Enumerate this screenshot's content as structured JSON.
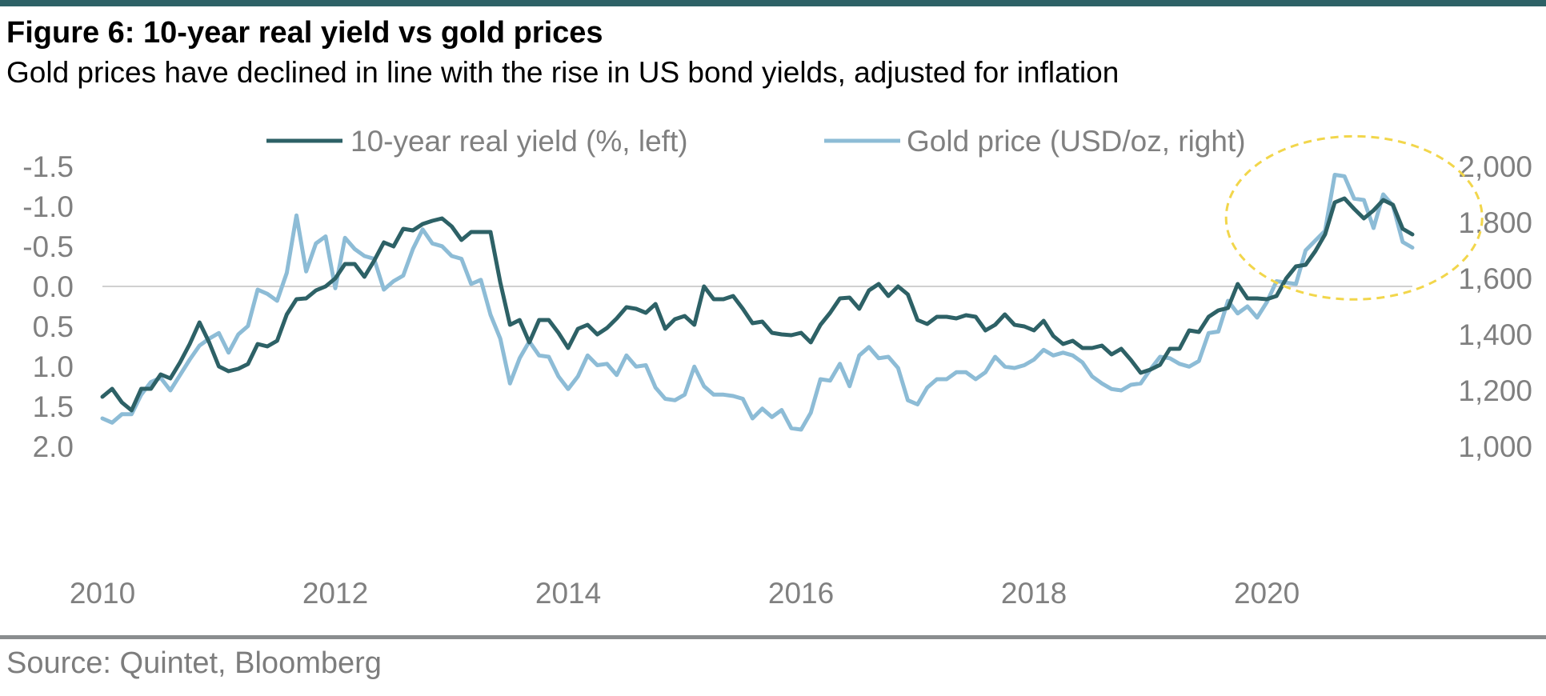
{
  "figure": {
    "title": "Figure 6: 10-year real yield vs gold prices",
    "subtitle": "Gold prices have declined in line with the rise in US bond yields, adjusted for inflation",
    "source": "Source: Quintet, Bloomberg"
  },
  "colors": {
    "real_yield": "#2d6166",
    "gold": "#8dbcd6",
    "zero_line": "#d0d0d0",
    "highlight_circle": "#f2d64b",
    "rule_top": "#2d6166",
    "rule_bottom": "#8a8d8f"
  },
  "chart_data": {
    "type": "line",
    "title": "",
    "xlabel": "",
    "legend_position": "top",
    "grid": false,
    "x_ticks": [
      "2010",
      "2012",
      "2014",
      "2016",
      "2018",
      "2020"
    ],
    "x_range": [
      "2010-01",
      "2021-03"
    ],
    "left_axis": {
      "ticks": [
        "-1.5",
        "-1.0",
        "-0.5",
        "0.0",
        "0.5",
        "1.0",
        "1.5",
        "2.0"
      ],
      "ylim": [
        -1.5,
        2.0
      ],
      "inverted": true
    },
    "right_axis": {
      "ticks": [
        "2,000",
        "1,800",
        "1,600",
        "1,400",
        "1,200",
        "1,000"
      ],
      "ylim": [
        1000,
        2000
      ]
    },
    "annotation": "dashed ellipse highlighting mid-2020 to early-2021 peak",
    "series": [
      {
        "name": "10-year real yield (%, left)",
        "axis": "left",
        "color": "#2d6166",
        "points": [
          [
            "2010-01",
            1.38
          ],
          [
            "2010-02",
            1.28
          ],
          [
            "2010-03",
            1.45
          ],
          [
            "2010-04",
            1.55
          ],
          [
            "2010-05",
            1.28
          ],
          [
            "2010-06",
            1.28
          ],
          [
            "2010-07",
            1.1
          ],
          [
            "2010-08",
            1.15
          ],
          [
            "2010-09",
            0.95
          ],
          [
            "2010-10",
            0.72
          ],
          [
            "2010-11",
            0.45
          ],
          [
            "2010-12",
            0.7
          ],
          [
            "2011-01",
            1.0
          ],
          [
            "2011-02",
            1.06
          ],
          [
            "2011-03",
            1.03
          ],
          [
            "2011-04",
            0.97
          ],
          [
            "2011-05",
            0.72
          ],
          [
            "2011-06",
            0.75
          ],
          [
            "2011-07",
            0.68
          ],
          [
            "2011-08",
            0.35
          ],
          [
            "2011-09",
            0.16
          ],
          [
            "2011-10",
            0.15
          ],
          [
            "2011-11",
            0.05
          ],
          [
            "2011-12",
            0.0
          ],
          [
            "2012-01",
            -0.1
          ],
          [
            "2012-02",
            -0.28
          ],
          [
            "2012-03",
            -0.28
          ],
          [
            "2012-04",
            -0.12
          ],
          [
            "2012-05",
            -0.32
          ],
          [
            "2012-06",
            -0.55
          ],
          [
            "2012-07",
            -0.5
          ],
          [
            "2012-08",
            -0.72
          ],
          [
            "2012-09",
            -0.7
          ],
          [
            "2012-10",
            -0.78
          ],
          [
            "2012-11",
            -0.82
          ],
          [
            "2012-12",
            -0.85
          ],
          [
            "2013-01",
            -0.75
          ],
          [
            "2013-02",
            -0.58
          ],
          [
            "2013-03",
            -0.68
          ],
          [
            "2013-04",
            -0.68
          ],
          [
            "2013-05",
            -0.68
          ],
          [
            "2013-06",
            -0.05
          ],
          [
            "2013-07",
            0.48
          ],
          [
            "2013-08",
            0.42
          ],
          [
            "2013-09",
            0.7
          ],
          [
            "2013-10",
            0.42
          ],
          [
            "2013-11",
            0.42
          ],
          [
            "2013-12",
            0.58
          ],
          [
            "2014-01",
            0.77
          ],
          [
            "2014-02",
            0.53
          ],
          [
            "2014-03",
            0.48
          ],
          [
            "2014-04",
            0.6
          ],
          [
            "2014-05",
            0.52
          ],
          [
            "2014-06",
            0.4
          ],
          [
            "2014-07",
            0.26
          ],
          [
            "2014-08",
            0.28
          ],
          [
            "2014-09",
            0.33
          ],
          [
            "2014-10",
            0.22
          ],
          [
            "2014-11",
            0.53
          ],
          [
            "2014-12",
            0.41
          ],
          [
            "2015-01",
            0.37
          ],
          [
            "2015-02",
            0.48
          ],
          [
            "2015-03",
            0.0
          ],
          [
            "2015-04",
            0.16
          ],
          [
            "2015-05",
            0.16
          ],
          [
            "2015-06",
            0.12
          ],
          [
            "2015-07",
            0.28
          ],
          [
            "2015-08",
            0.46
          ],
          [
            "2015-09",
            0.44
          ],
          [
            "2015-10",
            0.58
          ],
          [
            "2015-11",
            0.6
          ],
          [
            "2015-12",
            0.61
          ],
          [
            "2016-01",
            0.58
          ],
          [
            "2016-02",
            0.7
          ],
          [
            "2016-03",
            0.48
          ],
          [
            "2016-04",
            0.33
          ],
          [
            "2016-05",
            0.15
          ],
          [
            "2016-06",
            0.14
          ],
          [
            "2016-07",
            0.28
          ],
          [
            "2016-08",
            0.05
          ],
          [
            "2016-09",
            -0.03
          ],
          [
            "2016-10",
            0.12
          ],
          [
            "2016-11",
            0.0
          ],
          [
            "2016-12",
            0.1
          ],
          [
            "2017-01",
            0.42
          ],
          [
            "2017-02",
            0.47
          ],
          [
            "2017-03",
            0.38
          ],
          [
            "2017-04",
            0.38
          ],
          [
            "2017-05",
            0.4
          ],
          [
            "2017-06",
            0.36
          ],
          [
            "2017-07",
            0.38
          ],
          [
            "2017-08",
            0.55
          ],
          [
            "2017-09",
            0.48
          ],
          [
            "2017-10",
            0.35
          ],
          [
            "2017-11",
            0.48
          ],
          [
            "2017-12",
            0.5
          ],
          [
            "2018-01",
            0.55
          ],
          [
            "2018-02",
            0.43
          ],
          [
            "2018-03",
            0.62
          ],
          [
            "2018-04",
            0.72
          ],
          [
            "2018-05",
            0.68
          ],
          [
            "2018-06",
            0.77
          ],
          [
            "2018-07",
            0.77
          ],
          [
            "2018-08",
            0.74
          ],
          [
            "2018-09",
            0.85
          ],
          [
            "2018-10",
            0.78
          ],
          [
            "2018-11",
            0.92
          ],
          [
            "2018-12",
            1.08
          ],
          [
            "2019-01",
            1.04
          ],
          [
            "2019-02",
            0.98
          ],
          [
            "2019-03",
            0.78
          ],
          [
            "2019-04",
            0.78
          ],
          [
            "2019-05",
            0.55
          ],
          [
            "2019-06",
            0.57
          ],
          [
            "2019-07",
            0.38
          ],
          [
            "2019-08",
            0.3
          ],
          [
            "2019-09",
            0.27
          ],
          [
            "2019-10",
            -0.03
          ],
          [
            "2019-11",
            0.15
          ],
          [
            "2019-12",
            0.15
          ],
          [
            "2020-01",
            0.16
          ],
          [
            "2020-02",
            0.12
          ],
          [
            "2020-03",
            -0.1
          ],
          [
            "2020-04",
            -0.25
          ],
          [
            "2020-05",
            -0.27
          ],
          [
            "2020-06",
            -0.44
          ],
          [
            "2020-07",
            -0.65
          ],
          [
            "2020-08",
            -1.05
          ],
          [
            "2020-09",
            -1.1
          ],
          [
            "2020-10",
            -0.97
          ],
          [
            "2020-11",
            -0.85
          ],
          [
            "2020-12",
            -0.95
          ],
          [
            "2021-01",
            -1.08
          ],
          [
            "2021-02",
            -1.02
          ],
          [
            "2021-03",
            -0.72
          ],
          [
            "2021-04",
            -0.65
          ]
        ]
      },
      {
        "name": "Gold price (USD/oz, right)",
        "axis": "right",
        "color": "#8dbcd6",
        "points": [
          [
            "2010-01",
            1100
          ],
          [
            "2010-02",
            1085
          ],
          [
            "2010-03",
            1115
          ],
          [
            "2010-04",
            1115
          ],
          [
            "2010-05",
            1185
          ],
          [
            "2010-06",
            1230
          ],
          [
            "2010-07",
            1245
          ],
          [
            "2010-08",
            1200
          ],
          [
            "2010-09",
            1255
          ],
          [
            "2010-10",
            1310
          ],
          [
            "2010-11",
            1360
          ],
          [
            "2010-12",
            1385
          ],
          [
            "2011-01",
            1405
          ],
          [
            "2011-02",
            1335
          ],
          [
            "2011-03",
            1400
          ],
          [
            "2011-04",
            1430
          ],
          [
            "2011-05",
            1560
          ],
          [
            "2011-06",
            1545
          ],
          [
            "2011-07",
            1520
          ],
          [
            "2011-08",
            1620
          ],
          [
            "2011-09",
            1825
          ],
          [
            "2011-10",
            1625
          ],
          [
            "2011-11",
            1725
          ],
          [
            "2011-12",
            1750
          ],
          [
            "2012-01",
            1565
          ],
          [
            "2012-02",
            1745
          ],
          [
            "2012-03",
            1705
          ],
          [
            "2012-04",
            1680
          ],
          [
            "2012-05",
            1670
          ],
          [
            "2012-06",
            1560
          ],
          [
            "2012-07",
            1590
          ],
          [
            "2012-08",
            1610
          ],
          [
            "2012-09",
            1705
          ],
          [
            "2012-10",
            1775
          ],
          [
            "2012-11",
            1725
          ],
          [
            "2012-12",
            1715
          ],
          [
            "2013-01",
            1680
          ],
          [
            "2013-02",
            1670
          ],
          [
            "2013-03",
            1580
          ],
          [
            "2013-04",
            1595
          ],
          [
            "2013-05",
            1470
          ],
          [
            "2013-06",
            1385
          ],
          [
            "2013-07",
            1225
          ],
          [
            "2013-08",
            1315
          ],
          [
            "2013-09",
            1375
          ],
          [
            "2013-10",
            1325
          ],
          [
            "2013-11",
            1320
          ],
          [
            "2013-12",
            1250
          ],
          [
            "2014-01",
            1205
          ],
          [
            "2014-02",
            1250
          ],
          [
            "2014-03",
            1325
          ],
          [
            "2014-04",
            1290
          ],
          [
            "2014-05",
            1295
          ],
          [
            "2014-06",
            1255
          ],
          [
            "2014-07",
            1325
          ],
          [
            "2014-08",
            1285
          ],
          [
            "2014-09",
            1290
          ],
          [
            "2014-10",
            1210
          ],
          [
            "2014-11",
            1170
          ],
          [
            "2014-12",
            1165
          ],
          [
            "2015-01",
            1185
          ],
          [
            "2015-02",
            1285
          ],
          [
            "2015-03",
            1215
          ],
          [
            "2015-04",
            1185
          ],
          [
            "2015-05",
            1185
          ],
          [
            "2015-06",
            1180
          ],
          [
            "2015-07",
            1170
          ],
          [
            "2015-08",
            1100
          ],
          [
            "2015-09",
            1135
          ],
          [
            "2015-10",
            1105
          ],
          [
            "2015-11",
            1130
          ],
          [
            "2015-12",
            1065
          ],
          [
            "2016-01",
            1060
          ],
          [
            "2016-02",
            1120
          ],
          [
            "2016-03",
            1240
          ],
          [
            "2016-04",
            1235
          ],
          [
            "2016-05",
            1295
          ],
          [
            "2016-06",
            1215
          ],
          [
            "2016-07",
            1325
          ],
          [
            "2016-08",
            1355
          ],
          [
            "2016-09",
            1315
          ],
          [
            "2016-10",
            1320
          ],
          [
            "2016-11",
            1280
          ],
          [
            "2016-12",
            1165
          ],
          [
            "2017-01",
            1150
          ],
          [
            "2017-02",
            1210
          ],
          [
            "2017-03",
            1240
          ],
          [
            "2017-04",
            1240
          ],
          [
            "2017-05",
            1265
          ],
          [
            "2017-06",
            1265
          ],
          [
            "2017-07",
            1240
          ],
          [
            "2017-08",
            1265
          ],
          [
            "2017-09",
            1320
          ],
          [
            "2017-10",
            1285
          ],
          [
            "2017-11",
            1280
          ],
          [
            "2017-12",
            1290
          ],
          [
            "2018-01",
            1310
          ],
          [
            "2018-02",
            1345
          ],
          [
            "2018-03",
            1325
          ],
          [
            "2018-04",
            1335
          ],
          [
            "2018-05",
            1325
          ],
          [
            "2018-06",
            1300
          ],
          [
            "2018-07",
            1250
          ],
          [
            "2018-08",
            1225
          ],
          [
            "2018-09",
            1205
          ],
          [
            "2018-10",
            1200
          ],
          [
            "2018-11",
            1220
          ],
          [
            "2018-12",
            1225
          ],
          [
            "2019-01",
            1275
          ],
          [
            "2019-02",
            1320
          ],
          [
            "2019-03",
            1315
          ],
          [
            "2019-04",
            1295
          ],
          [
            "2019-05",
            1285
          ],
          [
            "2019-06",
            1305
          ],
          [
            "2019-07",
            1405
          ],
          [
            "2019-08",
            1410
          ],
          [
            "2019-09",
            1520
          ],
          [
            "2019-10",
            1475
          ],
          [
            "2019-11",
            1500
          ],
          [
            "2019-12",
            1460
          ],
          [
            "2020-01",
            1515
          ],
          [
            "2020-02",
            1590
          ],
          [
            "2020-03",
            1585
          ],
          [
            "2020-04",
            1580
          ],
          [
            "2020-05",
            1700
          ],
          [
            "2020-06",
            1735
          ],
          [
            "2020-07",
            1770
          ],
          [
            "2020-08",
            1970
          ],
          [
            "2020-09",
            1965
          ],
          [
            "2020-10",
            1885
          ],
          [
            "2020-11",
            1880
          ],
          [
            "2020-12",
            1780
          ],
          [
            "2021-01",
            1900
          ],
          [
            "2021-02",
            1860
          ],
          [
            "2021-03",
            1730
          ],
          [
            "2021-04",
            1710
          ]
        ]
      }
    ]
  }
}
